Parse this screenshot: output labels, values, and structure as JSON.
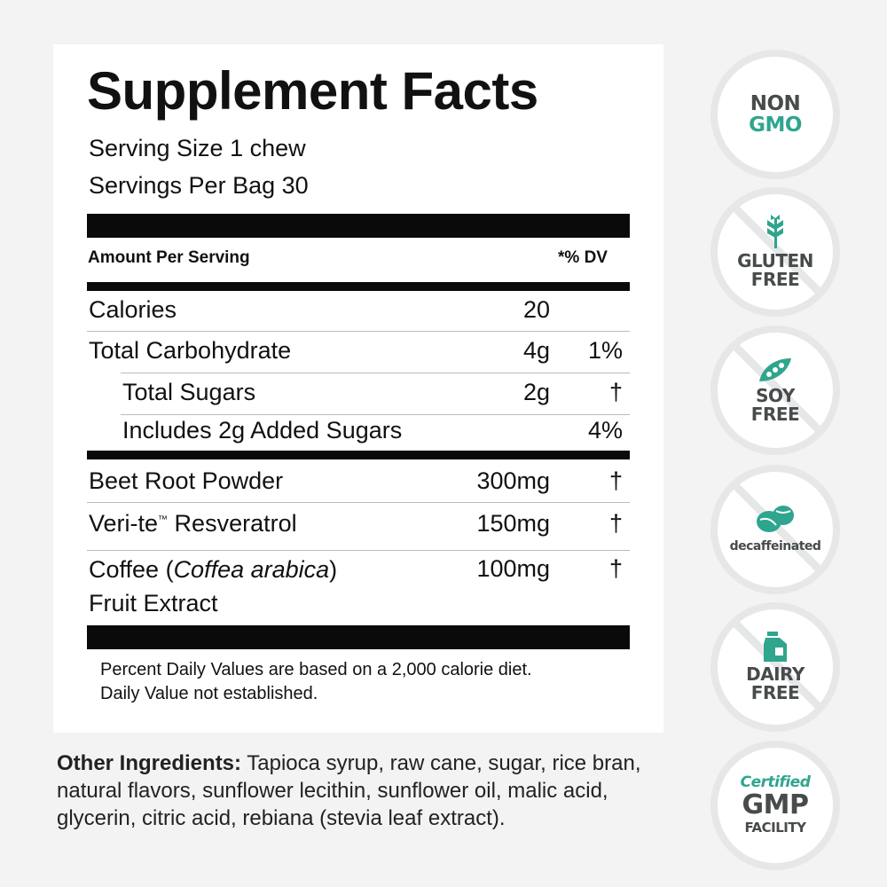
{
  "facts": {
    "title": "Supplement Facts",
    "serving_size": "Serving Size 1 chew",
    "servings_per": "Servings Per Bag 30",
    "header_amount": "Amount Per Serving",
    "header_dv": "*% DV",
    "rows": [
      {
        "name": "Calories",
        "amount": "20",
        "dv": ""
      },
      {
        "name": "Total Carbohydrate",
        "amount": "4g",
        "dv": "1%"
      },
      {
        "name": "Total Sugars",
        "amount": "2g",
        "dv": "†"
      },
      {
        "name": "Includes 2g Added Sugars",
        "amount": "",
        "dv": "4%"
      },
      {
        "name": "Beet Root Powder",
        "amount": "300mg",
        "dv": "†"
      },
      {
        "name": "Veri-te",
        "tm": "™",
        "name_rest": " Resveratrol",
        "amount": "150mg",
        "dv": "†"
      },
      {
        "name": "Coffee (",
        "name_italic": "Coffea arabica",
        "name_close": ")",
        "name_line2": "Fruit Extract",
        "amount": "100mg",
        "dv": "†"
      }
    ],
    "footnote1": "Percent Daily Values are based on a 2,000 calorie diet.",
    "footnote2": "Daily Value not established."
  },
  "other_ingredients": {
    "label": "Other Ingredients:",
    "text": " Tapioca syrup, raw cane, sugar, rice bran, natural flavors, sunflower lecithin, sunflower oil, malic acid, glycerin, citric acid, rebiana (stevia leaf extract)."
  },
  "badges": {
    "non_gmo": {
      "line1": "NON",
      "line2": "GMO"
    },
    "gluten_free": {
      "line1": "GLUTEN",
      "line2": "FREE",
      "icon": "wheat-icon"
    },
    "soy_free": {
      "line1": "SOY",
      "line2": "FREE",
      "icon": "soybean-pod-icon"
    },
    "decaf": {
      "line1": "decaffeinated",
      "icon": "coffee-bean-icon"
    },
    "dairy_free": {
      "line1": "DAIRY",
      "line2": "FREE",
      "icon": "milk-carton-icon"
    },
    "gmp": {
      "line1": "Certified",
      "line2": "GMP",
      "line3": "FACILITY"
    }
  },
  "colors": {
    "accent": "#2fa58e",
    "badge_text": "#474b4b",
    "ring": "#e6e7e9"
  }
}
